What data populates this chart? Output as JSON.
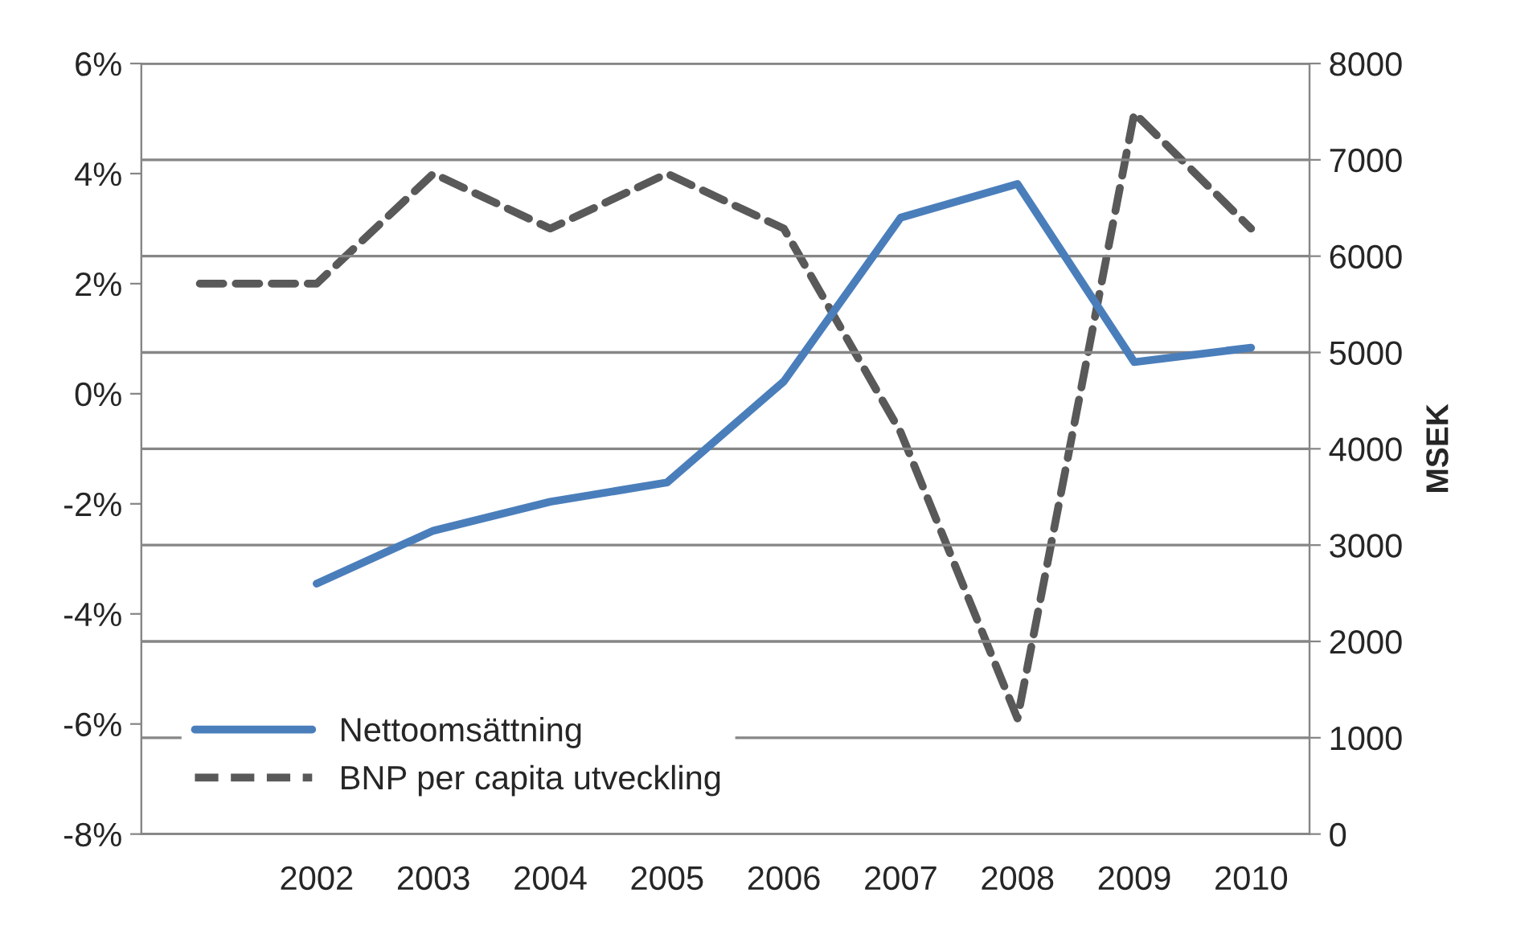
{
  "chart_data": {
    "type": "line",
    "y2label": "MSEK",
    "categories": [
      null,
      "2002",
      "2003",
      "2004",
      "2005",
      "2006",
      "2007",
      "2008",
      "2009",
      "2010"
    ],
    "series": [
      {
        "name": "Nettoomsättning",
        "color": "#4a7ebb",
        "axis": "y2",
        "line_style": "solid",
        "values": [
          null,
          2600,
          3150,
          3450,
          3650,
          4700,
          6400,
          6750,
          4900,
          5050
        ]
      },
      {
        "name": "BNP per capita utveckling",
        "color": "#595959",
        "axis": "y",
        "line_style": "dashed",
        "values": [
          2,
          2,
          4,
          3,
          4,
          3,
          -0.7,
          -5.9,
          5.1,
          3
        ]
      }
    ],
    "ylim": [
      -8,
      6
    ],
    "yticks": [
      {
        "value": -8,
        "label": "-8%"
      },
      {
        "value": -6,
        "label": "-6%"
      },
      {
        "value": -4,
        "label": "-4%"
      },
      {
        "value": -2,
        "label": "-2%"
      },
      {
        "value": 0,
        "label": "0%"
      },
      {
        "value": 2,
        "label": "2%"
      },
      {
        "value": 4,
        "label": "4%"
      },
      {
        "value": 6,
        "label": "6%"
      }
    ],
    "y2lim": [
      0,
      8000
    ],
    "y2ticks": [
      0,
      1000,
      2000,
      3000,
      4000,
      5000,
      6000,
      7000,
      8000
    ],
    "grid": "y2",
    "legend": "bottom left",
    "marker": "none"
  }
}
